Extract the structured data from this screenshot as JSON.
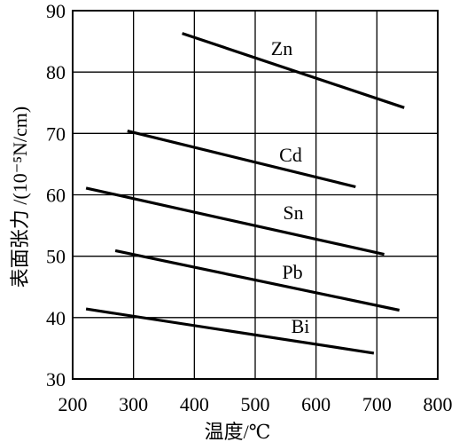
{
  "chart_data": {
    "type": "line",
    "title": "",
    "xlabel": "温度/℃",
    "ylabel": "表面张力 /(10⁻⁵N/cm)",
    "xlim": [
      200,
      800
    ],
    "ylim": [
      30,
      90
    ],
    "xticks": [
      200,
      300,
      400,
      500,
      600,
      700,
      800
    ],
    "yticks": [
      30,
      40,
      50,
      60,
      70,
      80,
      90
    ],
    "grid": true,
    "legend": "none",
    "series": [
      {
        "name": "Zn",
        "x": [
          380,
          745
        ],
        "y": [
          86.3,
          74.2
        ]
      },
      {
        "name": "Cd",
        "x": [
          290,
          665
        ],
        "y": [
          70.4,
          61.3
        ]
      },
      {
        "name": "Sn",
        "x": [
          222,
          712
        ],
        "y": [
          61.1,
          50.3
        ]
      },
      {
        "name": "Pb",
        "x": [
          270,
          737
        ],
        "y": [
          50.9,
          41.2
        ]
      },
      {
        "name": "Bi",
        "x": [
          222,
          695
        ],
        "y": [
          41.4,
          34.2
        ]
      }
    ]
  }
}
